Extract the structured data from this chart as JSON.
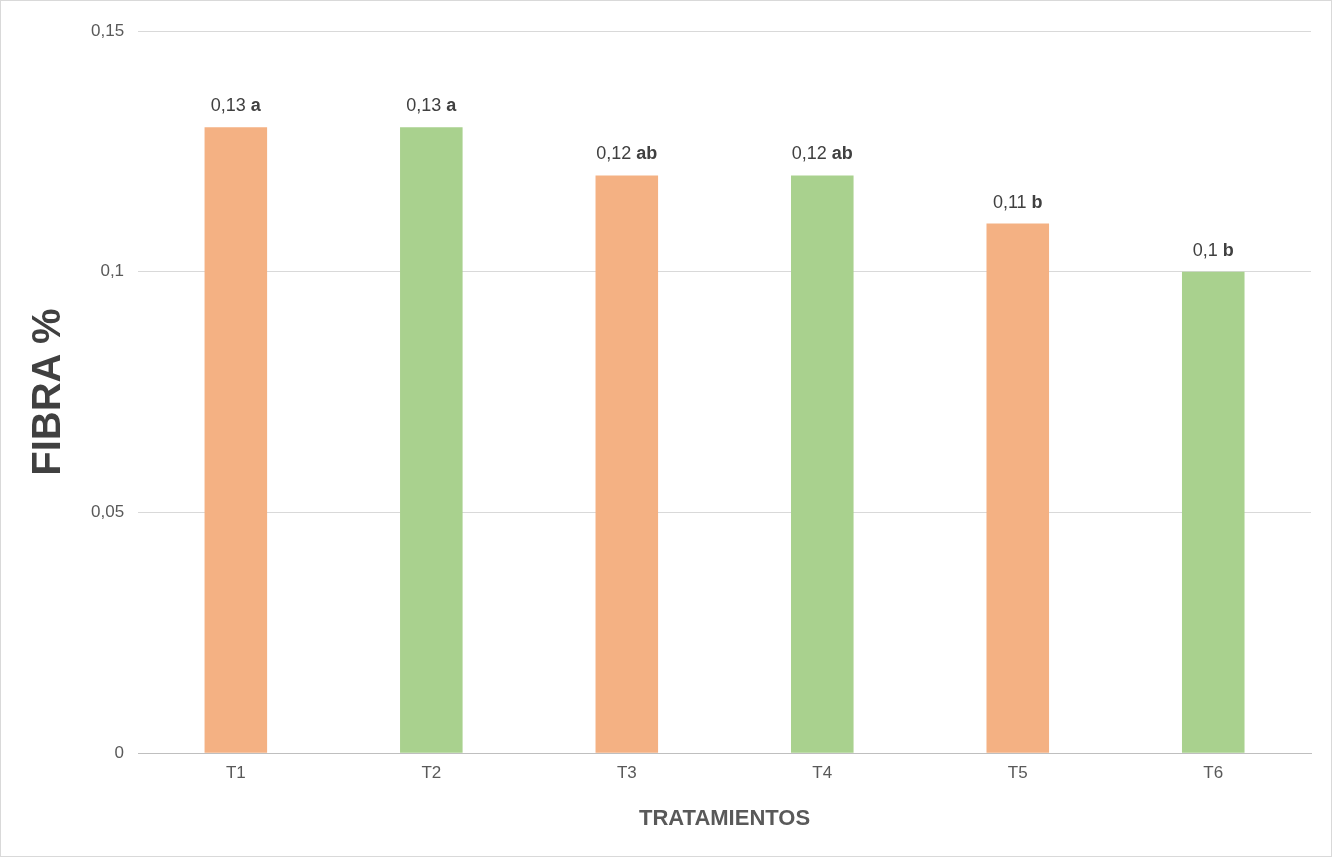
{
  "chart_data": {
    "type": "bar",
    "xlabel": "TRATAMIENTOS",
    "ylabel": "FIBRA %",
    "categories": [
      "T1",
      "T2",
      "T3",
      "T4",
      "T5",
      "T6"
    ],
    "values": [
      0.13,
      0.13,
      0.12,
      0.12,
      0.11,
      0.1
    ],
    "colors": [
      "#f4b183",
      "#a9d18e",
      "#f4b183",
      "#a9d18e",
      "#f4b183",
      "#a9d18e"
    ],
    "value_labels": [
      "0,13",
      "0,13",
      "0,12",
      "0,12",
      "0,11",
      "0,1"
    ],
    "annotations": [
      {
        "text": "a",
        "x": "T1",
        "y": 0.13
      },
      {
        "text": "a",
        "x": "T2",
        "y": 0.13
      },
      {
        "text": "ab",
        "x": "T3",
        "y": 0.12
      },
      {
        "text": "ab",
        "x": "T4",
        "y": 0.12
      },
      {
        "text": "b",
        "x": "T5",
        "y": 0.11
      },
      {
        "text": "b",
        "x": "T6",
        "y": 0.1
      }
    ],
    "ylim": [
      0,
      0.15
    ],
    "yticks": [
      0,
      {
        "value": 0.05,
        "label": "0,05"
      },
      {
        "value": 0.1,
        "label": "0,1"
      },
      {
        "value": 0.15,
        "label": "0,15"
      }
    ],
    "grid": "y",
    "legend": false
  }
}
